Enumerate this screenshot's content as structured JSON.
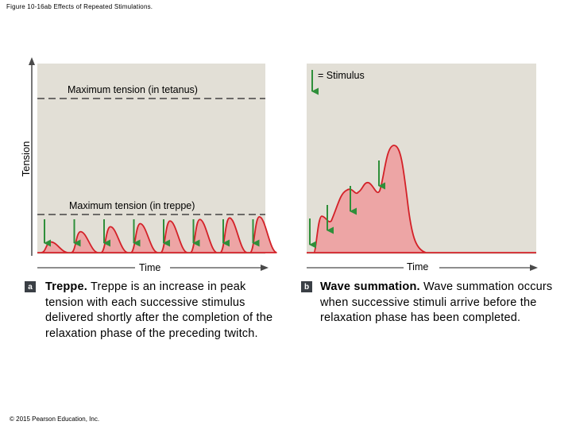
{
  "figure_title": "Figure 10-16ab Effects of Repeated Stimulations.",
  "copyright": "© 2015 Pearson Education, Inc.",
  "colors": {
    "panel_bg": "#e2dfd6",
    "curve_fill": "#eda5a5",
    "curve_stroke": "#d32128",
    "arrow": "#2f8f3a",
    "dash": "#444444"
  },
  "panel_a": {
    "y_axis_label": "Tension",
    "x_axis_label": "Time",
    "tetanus_label": "Maximum tension (in tetanus)",
    "treppe_label": "Maximum tension (in treppe)",
    "badge": "a",
    "caption_bold": "Treppe.",
    "caption_text": " Treppe is an increase in peak tension with each successive stimulus delivered shortly after the completion of the relaxation phase of the preceding twitch.",
    "twitch_peaks_relative": [
      0.28,
      0.55,
      0.68,
      0.76,
      0.83,
      0.87,
      0.91,
      0.94
    ]
  },
  "panel_b": {
    "legend_text": "= Stimulus",
    "x_axis_label": "Time",
    "badge": "b",
    "caption_bold": "Wave summation.",
    "caption_text": " Wave summation occurs when successive stimuli arrive before the relaxation phase has been completed.",
    "summation_peaks_relative": [
      0.34,
      0.58,
      1.0,
      1.0
    ]
  }
}
